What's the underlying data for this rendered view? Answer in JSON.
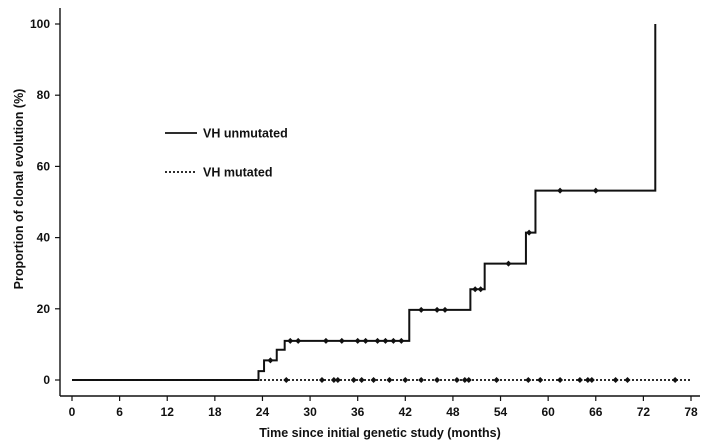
{
  "chart_data": {
    "type": "line",
    "title": "",
    "xlabel": "Time since initial genetic study (months)",
    "ylabel": "Proportion of clonal evolution  (%)",
    "xlim": [
      0,
      78
    ],
    "ylim": [
      0,
      100
    ],
    "xticks": [
      0,
      6,
      12,
      18,
      24,
      30,
      36,
      42,
      48,
      54,
      60,
      66,
      72,
      78
    ],
    "yticks": [
      0,
      20,
      40,
      60,
      80,
      100
    ],
    "grid": false,
    "legend_position": "center-left",
    "series": [
      {
        "name": "VH unmutated",
        "style": "solid",
        "color": "#111111",
        "step_x": [
          0,
          23.5,
          24.2,
          25.8,
          26.8,
          42.5,
          50.2,
          52.0,
          57.2,
          58.4,
          73.5
        ],
        "step_y": [
          0,
          2.5,
          5.5,
          8.5,
          11.0,
          19.7,
          25.5,
          32.7,
          41.4,
          53.2,
          100
        ],
        "censor_x": [
          25.0,
          27.5,
          28.5,
          32.0,
          34.0,
          36.0,
          37.0,
          38.5,
          39.5,
          40.5,
          41.5,
          44.0,
          46.0,
          47.0,
          50.8,
          51.5,
          55.0,
          57.6,
          61.5,
          66.0
        ]
      },
      {
        "name": "VH mutated",
        "style": "dotted",
        "color": "#111111",
        "step_x": [
          0,
          78
        ],
        "step_y": [
          0,
          0
        ],
        "censor_x": [
          27.0,
          31.5,
          33.0,
          33.5,
          35.5,
          36.5,
          38.0,
          40.0,
          42.0,
          44.0,
          46.0,
          48.5,
          49.5,
          50.0,
          53.5,
          57.5,
          59.0,
          61.5,
          64.0,
          65.0,
          65.5,
          68.5,
          70.0,
          76.0
        ]
      }
    ]
  }
}
